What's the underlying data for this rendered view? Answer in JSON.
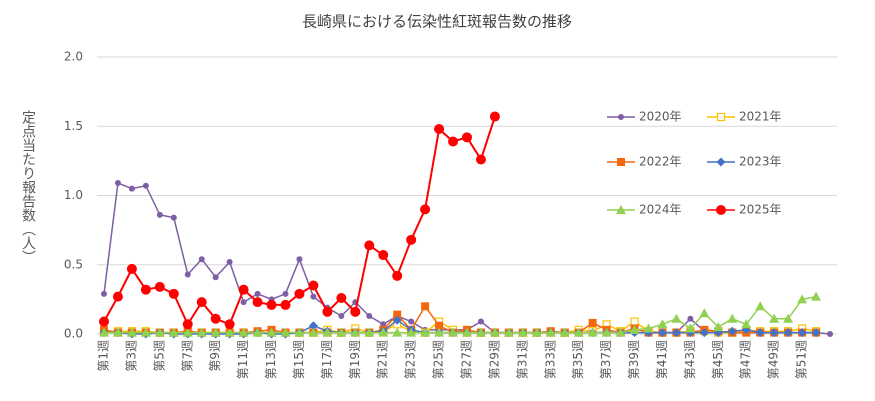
{
  "chart_data": {
    "type": "line",
    "title": "長崎県における伝染性紅斑報告数の推移",
    "ylabel": "定点当たり報告数（人）",
    "categories": [
      "第1週",
      null,
      "第3週",
      null,
      "第5週",
      null,
      "第7週",
      null,
      "第9週",
      null,
      "第11週",
      null,
      "第13週",
      null,
      "第15週",
      null,
      "第17週",
      null,
      "第19週",
      null,
      "第21週",
      null,
      "第23週",
      null,
      "第25週",
      null,
      "第27週",
      null,
      "第29週",
      null,
      "第31週",
      null,
      "第33週",
      null,
      "第35週",
      null,
      "第37週",
      null,
      "第39週",
      null,
      "第41週",
      null,
      "第43週",
      null,
      "第45週",
      null,
      "第47週",
      null,
      "第49週",
      null,
      "第51週",
      null,
      null
    ],
    "ylim": [
      0,
      2
    ],
    "yticks": [
      {
        "value": 0,
        "label": "0.0"
      },
      0.5,
      {
        "value": 1,
        "label": "1.0"
      },
      1.5,
      {
        "value": 2,
        "label": "2.0"
      }
    ],
    "grid": true,
    "legend": "right",
    "series": [
      {
        "name": "2020年",
        "color": "#7e5ea5",
        "marker": "circle",
        "values": [
          0.29,
          1.09,
          1.05,
          1.07,
          0.86,
          0.84,
          0.43,
          0.54,
          0.41,
          0.52,
          0.23,
          0.29,
          0.25,
          0.29,
          0.54,
          0.27,
          0.19,
          0.13,
          0.23,
          0.13,
          0.07,
          0.13,
          0.09,
          0.03,
          0.03,
          0.03,
          0.03,
          0.09,
          0.01,
          0.01,
          0.01,
          0.01,
          0.01,
          0.01,
          0.01,
          0.01,
          0.01,
          0.01,
          0.01,
          0.01,
          0.01,
          0.01,
          0.11,
          0.02,
          0.01,
          0.01,
          0.01,
          0.01,
          0.01,
          0.01,
          0.01,
          0.01,
          0.0
        ]
      },
      {
        "name": "2021年",
        "color": "#ffc000",
        "marker": "open-square",
        "values": [
          0.02,
          0.02,
          0.02,
          0.02,
          0.01,
          0.01,
          0.01,
          0.01,
          0.01,
          0.01,
          0.01,
          0.01,
          0.01,
          0.01,
          0.01,
          0.01,
          0.03,
          0.01,
          0.04,
          0.01,
          0.02,
          0.07,
          0.02,
          0.01,
          0.09,
          0.03,
          0.01,
          0.01,
          0.01,
          0.01,
          0.01,
          0.01,
          0.01,
          0.01,
          0.03,
          0.02,
          0.07,
          0.02,
          0.09,
          0.02,
          0.01,
          0.01,
          0.02,
          0.02,
          0.01,
          0.01,
          0.03,
          0.02,
          0.02,
          0.02,
          0.04,
          0.02,
          null
        ]
      },
      {
        "name": "2022年",
        "color": "#f4680b",
        "marker": "square",
        "values": [
          0.03,
          0.01,
          0.01,
          0.01,
          0.01,
          0.01,
          0.02,
          0.01,
          0.01,
          0.01,
          0.01,
          0.02,
          0.03,
          0.01,
          0.01,
          0.01,
          0.01,
          0.01,
          0.01,
          0.01,
          0.03,
          0.14,
          0.03,
          0.2,
          0.06,
          0.01,
          0.03,
          0.01,
          0.01,
          0.01,
          0.01,
          0.01,
          0.02,
          0.01,
          0.01,
          0.08,
          0.03,
          0.01,
          0.04,
          0.01,
          0.01,
          0.01,
          0.01,
          0.03,
          0.02,
          0.01,
          0.01,
          0.01,
          0.01,
          0.01,
          0.01,
          0.01,
          null
        ]
      },
      {
        "name": "2023年",
        "color": "#4472c4",
        "marker": "diamond",
        "values": [
          0.01,
          0.01,
          0.0,
          0.0,
          0.01,
          0.0,
          0.0,
          0.0,
          0.0,
          0.0,
          0.0,
          0.01,
          0.0,
          0.0,
          0.01,
          0.06,
          0.02,
          0.01,
          0.01,
          0.01,
          0.02,
          0.1,
          0.03,
          0.01,
          0.01,
          0.01,
          0.01,
          0.01,
          0.01,
          0.01,
          0.01,
          0.01,
          0.01,
          0.01,
          0.01,
          0.01,
          0.01,
          0.01,
          0.01,
          0.01,
          0.01,
          0.01,
          0.01,
          0.01,
          0.01,
          0.02,
          0.03,
          0.01,
          0.01,
          0.01,
          0.01,
          0.01,
          null
        ]
      },
      {
        "name": "2024年",
        "color": "#92d050",
        "marker": "triangle",
        "values": [
          0.01,
          0.01,
          0.01,
          0.01,
          0.01,
          0.01,
          0.01,
          0.01,
          0.01,
          0.01,
          0.01,
          0.01,
          0.01,
          0.01,
          0.01,
          0.01,
          0.01,
          0.01,
          0.01,
          0.01,
          0.01,
          0.01,
          0.01,
          0.01,
          0.01,
          0.01,
          0.01,
          0.01,
          0.01,
          0.01,
          0.01,
          0.01,
          0.01,
          0.01,
          0.01,
          0.01,
          0.01,
          0.01,
          0.03,
          0.04,
          0.07,
          0.11,
          0.04,
          0.15,
          0.05,
          0.11,
          0.07,
          0.2,
          0.11,
          0.11,
          0.25,
          0.27,
          null
        ]
      },
      {
        "name": "2025年",
        "color": "#ff0000",
        "marker": "big-circle",
        "values": [
          0.09,
          0.27,
          0.47,
          0.32,
          0.34,
          0.29,
          0.07,
          0.23,
          0.11,
          0.07,
          0.32,
          0.23,
          0.21,
          0.21,
          0.29,
          0.35,
          0.16,
          0.26,
          0.16,
          0.64,
          0.57,
          0.42,
          0.68,
          0.9,
          1.48,
          1.39,
          1.42,
          1.26,
          1.57,
          null,
          null,
          null,
          null,
          null,
          null,
          null,
          null,
          null,
          null,
          null,
          null,
          null,
          null,
          null,
          null,
          null,
          null,
          null,
          null,
          null,
          null,
          null,
          null
        ]
      }
    ]
  }
}
